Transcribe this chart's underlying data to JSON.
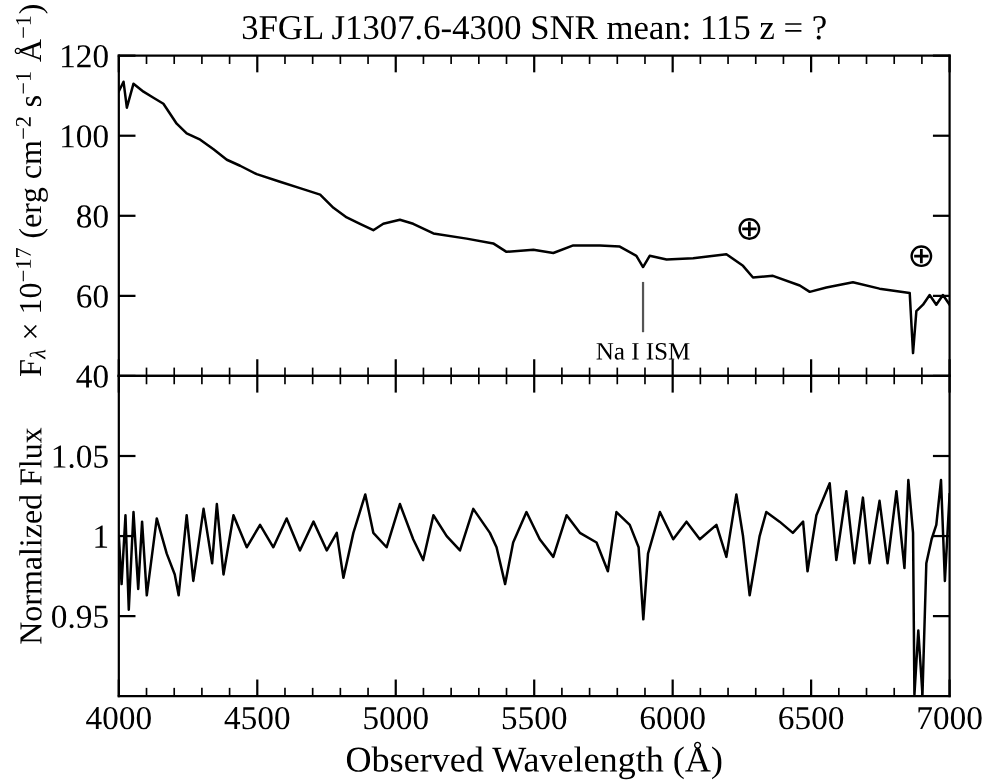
{
  "chart_data": [
    {
      "type": "line",
      "title": "3FGL J1307.6-4300 SNR mean: 115 z = ?",
      "ylabel": "F$_{λ}$ × 10$^{−17}$ (erg cm$^{−2}$ s$^{−1}$ Å$^{−1}$)",
      "series": [
        {
          "color": "#000000",
          "x": [
            4000,
            4017,
            4029,
            4053,
            4089,
            4125,
            4161,
            4185,
            4209,
            4245,
            4294,
            4342,
            4390,
            4438,
            4498,
            4582,
            4654,
            4727,
            4775,
            4823,
            4871,
            4919,
            4955,
            5015,
            5063,
            5136,
            5256,
            5352,
            5400,
            5497,
            5569,
            5641,
            5737,
            5809,
            5869,
            5893,
            5917,
            5978,
            6074,
            6194,
            6254,
            6290,
            6362,
            6459,
            6495,
            6555,
            6651,
            6747,
            6856,
            6868,
            6880,
            6904,
            6928,
            6952,
            6976,
            7000
          ],
          "values": [
            111.1,
            113.5,
            107,
            113,
            111,
            109.5,
            108,
            105.5,
            103,
            100.6,
            99,
            96.6,
            94,
            92.5,
            90.4,
            88.5,
            86.9,
            85.3,
            82,
            79.6,
            78,
            76.4,
            78,
            79,
            78,
            75.6,
            74.3,
            73.1,
            71,
            71.5,
            70.7,
            72.6,
            72.6,
            72.3,
            70,
            67.2,
            70,
            69.1,
            69.4,
            70.4,
            67.5,
            64.6,
            65,
            62.6,
            61,
            62.1,
            63.4,
            61.8,
            60.7,
            45.7,
            56.2,
            57.8,
            60.2,
            57.8,
            60.2,
            57.8
          ]
        }
      ],
      "xlim": [
        4000,
        7000
      ],
      "xticks": [
        4000,
        4500,
        5000,
        5500,
        6000,
        6500,
        7000
      ],
      "ylim": [
        40,
        120
      ],
      "yticks": [
        40,
        60,
        80,
        100,
        120
      ],
      "tick_labels": "y",
      "line_style": "solid",
      "marker": "none",
      "grid": false,
      "legend": false,
      "annotations": [
        "Na I ISM",
        "⊕",
        "⊕"
      ]
    },
    {
      "type": "line",
      "xlabel": "Observed Wavelength (Å)",
      "ylabel": "Normalized Flux",
      "series": [
        {
          "color": "#000000",
          "x": [
            4000,
            4010,
            4024,
            4036,
            4053,
            4070,
            4084,
            4101,
            4137,
            4173,
            4202,
            4216,
            4245,
            4269,
            4306,
            4337,
            4354,
            4378,
            4414,
            4462,
            4510,
            4558,
            4606,
            4654,
            4703,
            4751,
            4787,
            4811,
            4847,
            4890,
            4919,
            4967,
            5015,
            5063,
            5099,
            5136,
            5184,
            5232,
            5280,
            5340,
            5364,
            5395,
            5424,
            5472,
            5520,
            5569,
            5617,
            5665,
            5725,
            5766,
            5797,
            5845,
            5877,
            5894,
            5911,
            5954,
            6002,
            6050,
            6098,
            6158,
            6194,
            6230,
            6254,
            6278,
            6314,
            6338,
            6386,
            6434,
            6471,
            6487,
            6519,
            6567,
            6591,
            6627,
            6656,
            6687,
            6711,
            6747,
            6776,
            6808,
            6837,
            6851,
            6868,
            6873,
            6887,
            6902,
            6916,
            6935,
            6952,
            6969,
            6983,
            7000
          ],
          "values": [
            1.0,
            0.97,
            1.013,
            0.954,
            1.015,
            0.967,
            1.009,
            0.963,
            1.011,
            0.989,
            0.976,
            0.963,
            1.013,
            0.972,
            1.017,
            0.983,
            1.02,
            0.976,
            1.013,
            0.993,
            1.007,
            0.993,
            1.011,
            0.991,
            1.009,
            0.991,
            1.002,
            0.974,
            1.002,
            1.026,
            1.002,
            0.993,
            1.02,
            0.998,
            0.985,
            1.013,
            1.0,
            0.991,
            1.017,
            1.002,
            0.993,
            0.97,
            0.996,
            1.015,
            0.998,
            0.987,
            1.013,
            1.002,
            0.996,
            0.978,
            1.015,
            1.007,
            0.993,
            0.948,
            0.989,
            1.015,
            0.998,
            1.009,
            0.998,
            1.007,
            0.987,
            1.026,
            1.0,
            0.963,
            1.0,
            1.015,
            1.009,
            1.002,
            1.009,
            0.978,
            1.013,
            1.033,
            0.985,
            1.028,
            0.983,
            1.024,
            0.983,
            1.022,
            0.983,
            1.028,
            0.98,
            1.035,
            1.002,
            0.901,
            0.941,
            0.901,
            0.983,
            0.998,
            1.007,
            1.035,
            0.972,
            1.026
          ]
        }
      ],
      "xlim": [
        4000,
        7000
      ],
      "xticks": [
        4000,
        4500,
        5000,
        5500,
        6000,
        6500,
        7000
      ],
      "ylim": [
        0.9,
        1.1
      ],
      "yticks": [
        0.95,
        1,
        1.05
      ],
      "line_style": "solid",
      "marker": "none",
      "grid": false,
      "legend": false
    }
  ]
}
